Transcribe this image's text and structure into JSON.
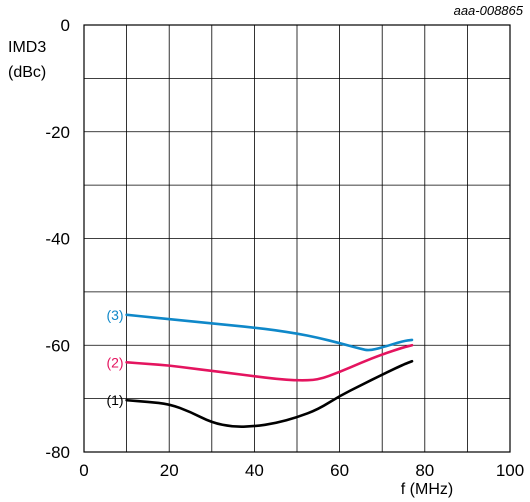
{
  "chart_data": {
    "type": "line",
    "reference_id": "aaa-008865",
    "ylabel_line1": "IMD3",
    "ylabel_line2": "(dBc)",
    "xlabel": "f (MHz)",
    "xlim": [
      0,
      100
    ],
    "ylim": [
      -80,
      0
    ],
    "x_ticks": [
      0,
      20,
      40,
      60,
      80,
      100
    ],
    "y_ticks": [
      0,
      -20,
      -40,
      -60,
      -80
    ],
    "x_grid_step": 10,
    "y_grid_step": 10,
    "grid": true,
    "series": [
      {
        "name": "(1)",
        "color": "#000000",
        "points": [
          [
            10,
            -70.3
          ],
          [
            15,
            -70.6
          ],
          [
            20,
            -71
          ],
          [
            25,
            -72.5
          ],
          [
            30,
            -74.5
          ],
          [
            35,
            -75.3
          ],
          [
            40,
            -75.2
          ],
          [
            45,
            -74.6
          ],
          [
            50,
            -73.5
          ],
          [
            55,
            -72
          ],
          [
            60,
            -69.5
          ],
          [
            65,
            -67.5
          ],
          [
            70,
            -65.5
          ],
          [
            75,
            -63.6
          ],
          [
            77,
            -63
          ]
        ]
      },
      {
        "name": "(2)",
        "color": "#e4145f",
        "points": [
          [
            10,
            -63.2
          ],
          [
            15,
            -63.5
          ],
          [
            20,
            -63.8
          ],
          [
            25,
            -64.3
          ],
          [
            30,
            -64.8
          ],
          [
            35,
            -65.3
          ],
          [
            40,
            -65.8
          ],
          [
            45,
            -66.3
          ],
          [
            50,
            -66.6
          ],
          [
            55,
            -66.5
          ],
          [
            60,
            -65
          ],
          [
            65,
            -63.3
          ],
          [
            70,
            -61.7
          ],
          [
            75,
            -60.4
          ],
          [
            77,
            -60
          ]
        ]
      },
      {
        "name": "(3)",
        "color": "#0f88c9",
        "points": [
          [
            10,
            -54.3
          ],
          [
            15,
            -54.7
          ],
          [
            20,
            -55.1
          ],
          [
            25,
            -55.5
          ],
          [
            30,
            -55.9
          ],
          [
            35,
            -56.3
          ],
          [
            40,
            -56.7
          ],
          [
            45,
            -57.2
          ],
          [
            50,
            -57.8
          ],
          [
            55,
            -58.6
          ],
          [
            60,
            -59.6
          ],
          [
            65,
            -60.7
          ],
          [
            67,
            -61
          ],
          [
            70,
            -60.4
          ],
          [
            75,
            -59.2
          ],
          [
            77,
            -59
          ]
        ]
      }
    ]
  }
}
